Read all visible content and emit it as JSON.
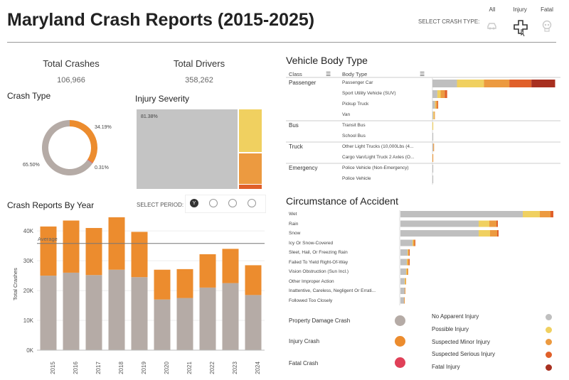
{
  "header": {
    "title": "Maryland Crash Reports (2015-2025)",
    "select_crash_type_label": "SELECT CRASH TYPE:",
    "crash_types": [
      {
        "label": "All",
        "icon": "car-crash-icon"
      },
      {
        "label": "Injury",
        "icon": "medical-cross-icon"
      },
      {
        "label": "Fatal",
        "icon": "skull-icon"
      }
    ]
  },
  "kpis": {
    "total_crashes_label": "Total Crashes",
    "total_crashes_value": "106,966",
    "total_drivers_label": "Total Drivers",
    "total_drivers_value": "358,262"
  },
  "crash_type": {
    "title": "Crash Type",
    "labels": [
      "34.19%",
      "0.31%",
      "65.50%"
    ]
  },
  "injury_severity": {
    "title": "Injury Severity",
    "label": "81.38%"
  },
  "crash_reports_by_year": {
    "title": "Crash Reports By Year",
    "select_period_label": "SELECT PERIOD:",
    "period_selected_label": "Y",
    "average_label": "Average"
  },
  "vehicle_body_type": {
    "title": "Vehicle Body Type",
    "col_class": "Class",
    "col_body_type": "Body Type",
    "rows": [
      {
        "class": "Passenger",
        "body": "Passenger Car"
      },
      {
        "class": "",
        "body": "Sport Utility Vehicle (SUV)"
      },
      {
        "class": "",
        "body": "Pickup Truck"
      },
      {
        "class": "",
        "body": "Van"
      },
      {
        "class": "Bus",
        "body": "Transit Bus"
      },
      {
        "class": "",
        "body": "School Bus"
      },
      {
        "class": "Truck",
        "body": "Other Light Trucks (10,000Lbs (4..."
      },
      {
        "class": "",
        "body": "Cargo Van/Light Truck 2 Axles (O..."
      },
      {
        "class": "Emergency",
        "body": "Police Vehicle (Non-Emergency)"
      },
      {
        "class": "",
        "body": "Police Vehicle"
      }
    ]
  },
  "circumstance": {
    "title": "Circumstance of Accident",
    "rows": [
      "Wet",
      "Rain",
      "Snow",
      "Icy Or Snow-Covered",
      "Sleet, Hail, Or Freezing Rain",
      "Failed To Yield Right-Of-Way",
      "Vision Obstruction (Sun Incl.)",
      "Other Improper Action",
      "Inattentive, Careless, Negligent Or Errati...",
      "Followed Too Closely"
    ]
  },
  "legend": {
    "crash_types": [
      {
        "label": "Property Damage Crash",
        "color": "#b5aba6"
      },
      {
        "label": "Injury Crash",
        "color": "#ec8c2e"
      },
      {
        "label": "Fatal Crash",
        "color": "#e04058"
      }
    ],
    "injury_levels": [
      {
        "label": "No Apparent Injury",
        "color": "#bfbfbf"
      },
      {
        "label": "Possible Injury",
        "color": "#f0d060"
      },
      {
        "label": "Suspected Minor Injury",
        "color": "#ec9a40"
      },
      {
        "label": "Suspected Serious Injury",
        "color": "#e0602a"
      },
      {
        "label": "Fatal Injury",
        "color": "#a83020"
      }
    ]
  },
  "colors": {
    "property": "#b5aba6",
    "injury": "#ec8c2e",
    "fatal": "#e04058",
    "no_injury": "#bfbfbf",
    "possible": "#f0d060",
    "minor": "#ec9a40",
    "serious": "#e0602a",
    "fatal_injury": "#a83020"
  },
  "chart_data": [
    {
      "type": "pie",
      "chart": "crash_type_donut",
      "slices": [
        {
          "name": "Property Damage Crash",
          "value": 65.5
        },
        {
          "name": "Injury Crash",
          "value": 34.19
        },
        {
          "name": "Fatal Crash",
          "value": 0.31
        }
      ]
    },
    {
      "type": "bar",
      "chart": "crash_reports_by_year",
      "categories": [
        "2015",
        "2016",
        "2017",
        "2018",
        "2019",
        "2020",
        "2021",
        "2022",
        "2023",
        "2024"
      ],
      "series": [
        {
          "name": "Property Damage Crash",
          "values": [
            25000,
            26000,
            25200,
            27000,
            24500,
            17000,
            17500,
            21000,
            22500,
            18500
          ]
        },
        {
          "name": "Injury Crash",
          "values": [
            16500,
            17500,
            15800,
            17600,
            15200,
            10000,
            9700,
            11200,
            11500,
            10000
          ]
        }
      ],
      "ylabel": "Total Crashes",
      "yticks": [
        "0K",
        "10K",
        "20K",
        "30K",
        "40K"
      ],
      "ylim": [
        0,
        46000
      ],
      "average": 35800
    },
    {
      "type": "bar",
      "chart": "vehicle_body_type",
      "stacked": true,
      "series_names": [
        "No Apparent Injury",
        "Possible Injury",
        "Suspected Minor Injury",
        "Suspected Serious Injury",
        "Fatal Injury"
      ],
      "rows": [
        [
          30,
          33,
          31,
          27,
          29
        ],
        [
          6,
          4,
          5,
          3,
          0
        ],
        [
          3,
          1,
          2,
          1,
          0
        ],
        [
          1,
          1,
          1,
          0,
          0
        ],
        [
          0,
          1,
          0,
          0,
          0
        ],
        [
          1,
          0,
          0,
          0,
          0
        ],
        [
          1,
          0,
          1,
          0,
          0
        ],
        [
          0,
          0,
          1,
          0,
          0
        ],
        [
          1,
          0,
          0,
          0,
          0
        ],
        [
          1,
          0,
          0,
          0,
          0
        ]
      ]
    },
    {
      "type": "bar",
      "chart": "circumstance_of_accident",
      "stacked": true,
      "series_names": [
        "No Apparent Injury",
        "Possible Injury",
        "Suspected Minor Injury",
        "Suspected Serious Injury",
        "Fatal Injury"
      ],
      "rows": [
        [
          172,
          24,
          15,
          4,
          0
        ],
        [
          110,
          15,
          10,
          2,
          0
        ],
        [
          110,
          16,
          10,
          2,
          0
        ],
        [
          17,
          1,
          2,
          1,
          0
        ],
        [
          10,
          1,
          1,
          1,
          0
        ],
        [
          9,
          1,
          2,
          1,
          0
        ],
        [
          8,
          1,
          2,
          0,
          0
        ],
        [
          6,
          1,
          1,
          0,
          0
        ],
        [
          6,
          0,
          1,
          0,
          0
        ],
        [
          5,
          0,
          1,
          0,
          0
        ]
      ]
    }
  ]
}
